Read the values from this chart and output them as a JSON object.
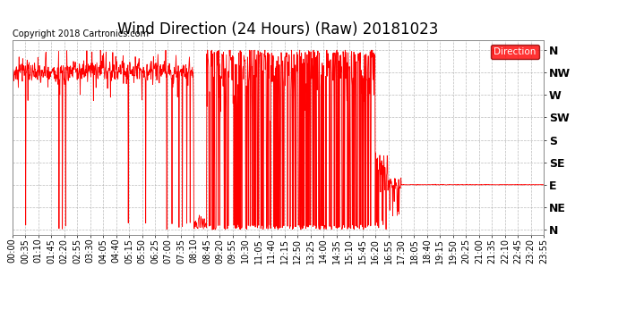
{
  "title": "Wind Direction (24 Hours) (Raw) 20181023",
  "copyright": "Copyright 2018 Cartronics.com",
  "legend_label": "Direction",
  "line_color": "#FF0000",
  "background_color": "#FFFFFF",
  "plot_bg": "#FFFFFF",
  "grid_color": "#AAAAAA",
  "ytick_labels": [
    "N",
    "NW",
    "W",
    "SW",
    "S",
    "SE",
    "E",
    "NE",
    "N"
  ],
  "ytick_values": [
    360,
    315,
    270,
    225,
    180,
    135,
    90,
    45,
    0
  ],
  "ylim": [
    -10,
    380
  ],
  "xlabel_times": [
    "00:00",
    "00:35",
    "01:10",
    "01:45",
    "02:20",
    "02:55",
    "03:30",
    "04:05",
    "04:40",
    "05:15",
    "05:50",
    "06:25",
    "07:00",
    "07:35",
    "08:10",
    "08:45",
    "09:20",
    "09:55",
    "10:30",
    "11:05",
    "11:40",
    "12:15",
    "12:50",
    "13:25",
    "14:00",
    "14:35",
    "15:10",
    "15:45",
    "16:20",
    "16:55",
    "17:30",
    "18:05",
    "18:40",
    "19:15",
    "19:50",
    "20:25",
    "21:00",
    "21:35",
    "22:10",
    "22:45",
    "23:20",
    "23:55"
  ],
  "title_fontsize": 12,
  "copyright_fontsize": 7,
  "tick_fontsize": 7,
  "ytick_fontsize": 9
}
